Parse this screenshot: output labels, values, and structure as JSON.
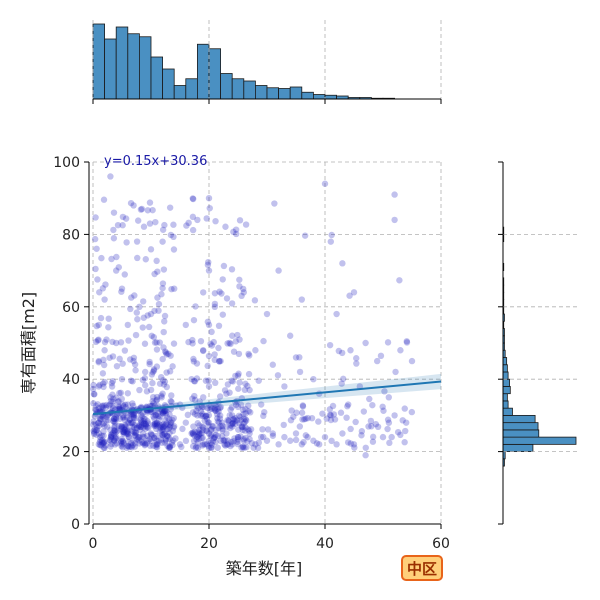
{
  "chart_data": {
    "type": "scatter",
    "xlabel": "築年数[年]",
    "ylabel": "専有面積[m2]",
    "xlim": [
      0,
      60
    ],
    "ylim": [
      0,
      100
    ],
    "xticks": [
      0,
      20,
      40,
      60
    ],
    "yticks": [
      0,
      20,
      40,
      60,
      80,
      100
    ],
    "grid": true,
    "regression": {
      "equation": "y=0.15x+30.36",
      "slope": 0.15,
      "intercept": 30.36
    },
    "badge": "中区",
    "colors": {
      "points": "#2020c0",
      "regression": "#1f77b4",
      "hist": "#4a90c2"
    },
    "scatter_points_sample": [
      [
        1,
        22
      ],
      [
        1,
        25
      ],
      [
        1,
        28
      ],
      [
        1,
        32
      ],
      [
        1,
        38
      ],
      [
        1,
        45
      ],
      [
        1,
        55
      ],
      [
        2,
        21
      ],
      [
        2,
        27
      ],
      [
        2,
        30
      ],
      [
        2,
        48
      ],
      [
        2,
        62
      ],
      [
        3,
        23
      ],
      [
        3,
        26
      ],
      [
        3,
        35
      ],
      [
        3,
        96
      ],
      [
        4,
        24
      ],
      [
        4,
        29
      ],
      [
        4,
        50
      ],
      [
        4,
        70
      ],
      [
        5,
        22
      ],
      [
        5,
        27
      ],
      [
        5,
        40
      ],
      [
        5,
        65
      ],
      [
        6,
        25
      ],
      [
        6,
        28
      ],
      [
        6,
        33
      ],
      [
        6,
        55
      ],
      [
        7,
        23
      ],
      [
        7,
        30
      ],
      [
        7,
        45
      ],
      [
        7,
        88
      ],
      [
        8,
        24
      ],
      [
        8,
        27
      ],
      [
        8,
        37
      ],
      [
        8,
        60
      ],
      [
        9,
        22
      ],
      [
        9,
        29
      ],
      [
        9,
        42
      ],
      [
        10,
        25
      ],
      [
        10,
        31
      ],
      [
        10,
        58
      ],
      [
        11,
        23
      ],
      [
        11,
        28
      ],
      [
        12,
        26
      ],
      [
        12,
        36
      ],
      [
        12,
        78
      ],
      [
        13,
        24
      ],
      [
        13,
        47
      ],
      [
        14,
        27
      ],
      [
        14,
        65
      ],
      [
        15,
        22
      ],
      [
        15,
        33
      ],
      [
        16,
        28
      ],
      [
        16,
        55
      ],
      [
        17,
        25
      ],
      [
        17,
        40
      ],
      [
        18,
        24
      ],
      [
        18,
        30
      ],
      [
        18,
        84
      ],
      [
        19,
        22
      ],
      [
        19,
        26
      ],
      [
        19,
        35
      ],
      [
        19,
        48
      ],
      [
        20,
        21
      ],
      [
        20,
        25
      ],
      [
        20,
        28
      ],
      [
        20,
        38
      ],
      [
        20,
        55
      ],
      [
        20,
        70
      ],
      [
        20,
        90
      ],
      [
        21,
        24
      ],
      [
        21,
        32
      ],
      [
        21,
        60
      ],
      [
        22,
        23
      ],
      [
        22,
        27
      ],
      [
        22,
        45
      ],
      [
        23,
        25
      ],
      [
        23,
        36
      ],
      [
        24,
        22
      ],
      [
        24,
        30
      ],
      [
        24,
        52
      ],
      [
        25,
        24
      ],
      [
        25,
        41
      ],
      [
        26,
        23
      ],
      [
        26,
        64
      ],
      [
        27,
        25
      ],
      [
        27,
        37
      ],
      [
        28,
        22
      ],
      [
        28,
        48
      ],
      [
        29,
        24
      ],
      [
        29,
        33
      ],
      [
        30,
        23
      ],
      [
        30,
        58
      ],
      [
        31,
        25
      ],
      [
        31,
        44
      ],
      [
        32,
        22
      ],
      [
        32,
        70
      ],
      [
        33,
        24
      ],
      [
        33,
        38
      ],
      [
        34,
        23
      ],
      [
        34,
        52
      ],
      [
        35,
        25
      ],
      [
        35,
        46
      ],
      [
        36,
        22
      ],
      [
        36,
        62
      ],
      [
        37,
        24
      ],
      [
        38,
        23
      ],
      [
        38,
        40
      ],
      [
        39,
        22
      ],
      [
        39,
        36
      ],
      [
        40,
        24
      ],
      [
        40,
        94
      ],
      [
        41,
        30
      ],
      [
        41,
        78
      ],
      [
        42,
        22
      ],
      [
        42,
        58
      ],
      [
        43,
        25
      ],
      [
        43,
        72
      ],
      [
        44,
        33
      ],
      [
        45,
        22
      ],
      [
        45,
        64
      ],
      [
        46,
        38
      ],
      [
        47,
        19
      ],
      [
        47,
        50
      ],
      [
        48,
        27
      ],
      [
        49,
        45
      ],
      [
        50,
        24
      ],
      [
        51,
        35
      ],
      [
        52,
        30
      ],
      [
        52,
        91
      ],
      [
        52,
        84
      ],
      [
        53,
        48
      ],
      [
        54,
        28
      ],
      [
        55,
        45
      ]
    ],
    "marginal_x_hist": {
      "bin_width": 2,
      "bin_start": 0,
      "counts": [
        100,
        80,
        96,
        87,
        83,
        56,
        40,
        18,
        27,
        73,
        67,
        34,
        27,
        24,
        18,
        15,
        14,
        16,
        9,
        6,
        5,
        4,
        2,
        2,
        1,
        1,
        0,
        0,
        0,
        0
      ]
    },
    "marginal_y_hist": {
      "bin_width": 2,
      "bin_start": 14,
      "counts": [
        0,
        2,
        3,
        41,
        100,
        49,
        48,
        44,
        13,
        7,
        6,
        10,
        9,
        7,
        6,
        5,
        3,
        2,
        2,
        2,
        1,
        2,
        1,
        1,
        1,
        1,
        1,
        0,
        1,
        0,
        0,
        0,
        1,
        1,
        0,
        0,
        0,
        0,
        0,
        0,
        0,
        0,
        0
      ]
    }
  }
}
